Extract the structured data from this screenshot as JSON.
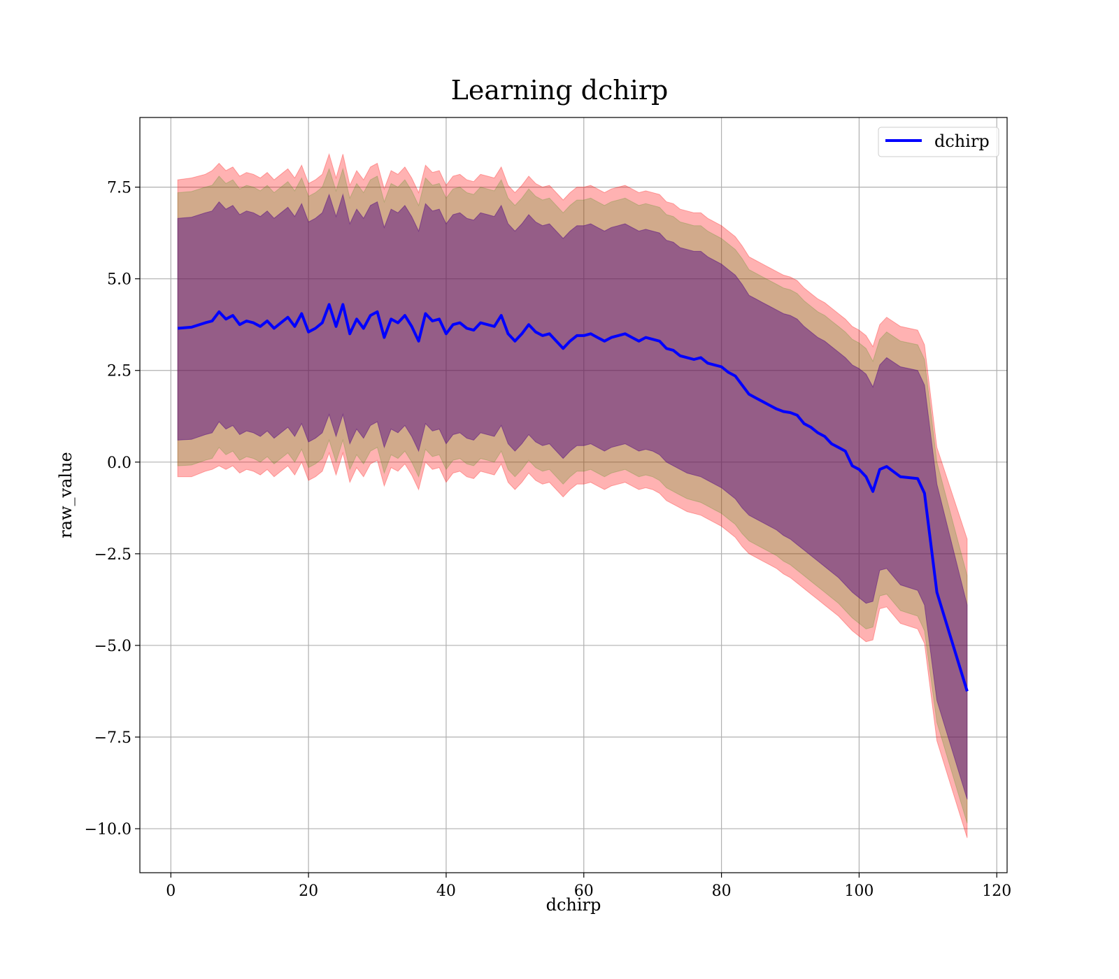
{
  "chart_data": {
    "type": "line",
    "title": "Learning dchirp",
    "xlabel": "dchirp",
    "ylabel": "raw_value",
    "xlim": [
      -4.5,
      121.5
    ],
    "ylim": [
      -11.2,
      9.4
    ],
    "xticks": [
      0,
      20,
      40,
      60,
      80,
      100,
      120
    ],
    "xtick_labels": [
      "0",
      "20",
      "40",
      "60",
      "80",
      "100",
      "120"
    ],
    "yticks": [
      7.5,
      5.0,
      2.5,
      0.0,
      -2.5,
      -5.0,
      -7.5,
      -10.0
    ],
    "ytick_labels": [
      "7.5",
      "5.0",
      "2.5",
      "0.0",
      "−2.5",
      "−5.0",
      "−7.5",
      "−10.0"
    ],
    "grid": true,
    "legend_position": "top-right",
    "series": [
      {
        "name": "dchirp",
        "color": "#0000ff",
        "x": [
          1,
          3,
          5,
          6,
          7,
          8,
          9,
          10,
          11,
          12,
          13,
          14,
          15,
          16,
          17,
          18,
          19,
          20,
          21,
          22,
          23,
          24,
          25,
          26,
          27,
          28,
          29,
          30,
          31,
          32,
          33,
          34,
          35,
          36,
          37,
          38,
          39,
          40,
          41,
          42,
          43,
          44,
          45,
          46,
          47,
          48,
          49,
          50,
          51,
          52,
          53,
          54,
          55,
          56,
          57,
          58,
          59,
          60,
          61,
          62,
          63,
          64,
          65,
          66,
          67,
          68,
          69,
          70,
          71,
          72,
          73,
          74,
          75,
          76,
          77,
          78,
          79,
          80,
          81,
          82,
          83,
          84,
          85,
          86,
          87,
          88,
          89,
          90,
          91,
          92,
          93,
          94,
          95,
          96,
          97,
          98,
          99,
          100,
          101,
          102,
          103,
          104,
          106,
          108.5,
          109.5,
          111.3,
          115.7
        ],
        "y": [
          3.65,
          3.68,
          3.8,
          3.85,
          4.1,
          3.9,
          4.0,
          3.75,
          3.85,
          3.8,
          3.7,
          3.85,
          3.65,
          3.8,
          3.95,
          3.7,
          4.05,
          3.55,
          3.65,
          3.8,
          4.3,
          3.7,
          4.3,
          3.5,
          3.9,
          3.65,
          4.0,
          4.1,
          3.4,
          3.9,
          3.8,
          4.0,
          3.7,
          3.3,
          4.05,
          3.85,
          3.9,
          3.5,
          3.75,
          3.8,
          3.65,
          3.6,
          3.8,
          3.75,
          3.7,
          4.0,
          3.5,
          3.3,
          3.5,
          3.75,
          3.55,
          3.45,
          3.5,
          3.3,
          3.1,
          3.3,
          3.45,
          3.45,
          3.5,
          3.4,
          3.3,
          3.4,
          3.45,
          3.5,
          3.4,
          3.3,
          3.4,
          3.35,
          3.3,
          3.1,
          3.05,
          2.9,
          2.85,
          2.8,
          2.85,
          2.7,
          2.65,
          2.6,
          2.45,
          2.35,
          2.1,
          1.85,
          1.75,
          1.65,
          1.55,
          1.45,
          1.38,
          1.35,
          1.28,
          1.05,
          0.95,
          0.8,
          0.7,
          0.5,
          0.4,
          0.3,
          -0.1,
          -0.2,
          -0.4,
          -0.8,
          -0.2,
          -0.12,
          -0.4,
          -0.45,
          -0.85,
          -3.55,
          -6.25
        ]
      }
    ],
    "bands": [
      {
        "color": "#ff0000",
        "opacity": 0.3,
        "x": [
          1,
          3,
          5,
          6,
          7,
          8,
          9,
          10,
          11,
          12,
          13,
          14,
          15,
          16,
          17,
          18,
          19,
          20,
          21,
          22,
          23,
          24,
          25,
          26,
          27,
          28,
          29,
          30,
          31,
          32,
          33,
          34,
          35,
          36,
          37,
          38,
          39,
          40,
          41,
          42,
          43,
          44,
          45,
          46,
          47,
          48,
          49,
          50,
          51,
          52,
          53,
          54,
          55,
          56,
          57,
          58,
          59,
          60,
          61,
          62,
          63,
          64,
          65,
          66,
          67,
          68,
          69,
          70,
          71,
          72,
          73,
          74,
          75,
          76,
          77,
          78,
          79,
          80,
          81,
          82,
          83,
          84,
          85,
          86,
          87,
          88,
          89,
          90,
          91,
          92,
          93,
          94,
          95,
          96,
          97,
          98,
          99,
          100,
          101,
          102,
          103,
          104,
          106,
          108.5,
          109.5,
          111.3,
          115.7
        ],
        "upper": [
          7.7,
          7.75,
          7.85,
          7.95,
          8.15,
          7.95,
          8.05,
          7.8,
          7.9,
          7.85,
          7.75,
          7.9,
          7.7,
          7.85,
          8.0,
          7.75,
          8.1,
          7.6,
          7.7,
          7.85,
          8.4,
          7.75,
          8.4,
          7.55,
          7.95,
          7.7,
          8.05,
          8.15,
          7.45,
          7.95,
          7.85,
          8.05,
          7.75,
          7.35,
          8.1,
          7.9,
          7.95,
          7.55,
          7.8,
          7.85,
          7.7,
          7.65,
          7.85,
          7.8,
          7.75,
          8.05,
          7.55,
          7.35,
          7.55,
          7.8,
          7.6,
          7.5,
          7.55,
          7.35,
          7.15,
          7.35,
          7.5,
          7.5,
          7.55,
          7.45,
          7.35,
          7.45,
          7.5,
          7.55,
          7.45,
          7.35,
          7.4,
          7.35,
          7.3,
          7.1,
          7.05,
          6.9,
          6.85,
          6.8,
          6.8,
          6.65,
          6.55,
          6.45,
          6.3,
          6.15,
          5.9,
          5.6,
          5.5,
          5.4,
          5.3,
          5.2,
          5.1,
          5.05,
          4.95,
          4.75,
          4.6,
          4.45,
          4.35,
          4.2,
          4.05,
          3.9,
          3.7,
          3.6,
          3.45,
          3.15,
          3.75,
          3.95,
          3.7,
          3.6,
          3.2,
          0.4,
          -2.1
        ],
        "lower": [
          -0.4,
          -0.4,
          -0.25,
          -0.2,
          -0.1,
          -0.2,
          -0.1,
          -0.3,
          -0.2,
          -0.25,
          -0.35,
          -0.2,
          -0.4,
          -0.25,
          -0.1,
          -0.35,
          0.0,
          -0.5,
          -0.4,
          -0.25,
          0.25,
          -0.35,
          0.25,
          -0.55,
          -0.15,
          -0.4,
          -0.05,
          0.05,
          -0.65,
          -0.15,
          -0.25,
          -0.05,
          -0.35,
          -0.75,
          0.0,
          -0.2,
          -0.15,
          -0.55,
          -0.3,
          -0.25,
          -0.4,
          -0.45,
          -0.25,
          -0.3,
          -0.35,
          -0.05,
          -0.55,
          -0.75,
          -0.55,
          -0.3,
          -0.5,
          -0.6,
          -0.55,
          -0.75,
          -0.95,
          -0.75,
          -0.6,
          -0.6,
          -0.55,
          -0.65,
          -0.75,
          -0.65,
          -0.6,
          -0.55,
          -0.65,
          -0.75,
          -0.7,
          -0.75,
          -0.85,
          -1.05,
          -1.15,
          -1.25,
          -1.35,
          -1.4,
          -1.45,
          -1.55,
          -1.65,
          -1.75,
          -1.9,
          -2.05,
          -2.3,
          -2.5,
          -2.6,
          -2.7,
          -2.8,
          -2.9,
          -3.05,
          -3.15,
          -3.3,
          -3.45,
          -3.6,
          -3.75,
          -3.9,
          -4.05,
          -4.2,
          -4.4,
          -4.6,
          -4.75,
          -4.9,
          -4.85,
          -4.0,
          -3.95,
          -4.4,
          -4.55,
          -4.95,
          -7.6,
          -10.25
        ]
      },
      {
        "color": "#2e8b00",
        "opacity": 0.22,
        "x": [
          1,
          3,
          5,
          6,
          7,
          8,
          9,
          10,
          11,
          12,
          13,
          14,
          15,
          16,
          17,
          18,
          19,
          20,
          21,
          22,
          23,
          24,
          25,
          26,
          27,
          28,
          29,
          30,
          31,
          32,
          33,
          34,
          35,
          36,
          37,
          38,
          39,
          40,
          41,
          42,
          43,
          44,
          45,
          46,
          47,
          48,
          49,
          50,
          51,
          52,
          53,
          54,
          55,
          56,
          57,
          58,
          59,
          60,
          61,
          62,
          63,
          64,
          65,
          66,
          67,
          68,
          69,
          70,
          71,
          72,
          73,
          74,
          75,
          76,
          77,
          78,
          79,
          80,
          81,
          82,
          83,
          84,
          85,
          86,
          87,
          88,
          89,
          90,
          91,
          92,
          93,
          94,
          95,
          96,
          97,
          98,
          99,
          100,
          101,
          102,
          103,
          104,
          106,
          108.5,
          109.5,
          111.3,
          115.7
        ],
        "upper": [
          7.35,
          7.38,
          7.5,
          7.55,
          7.8,
          7.6,
          7.7,
          7.45,
          7.55,
          7.5,
          7.4,
          7.55,
          7.35,
          7.5,
          7.65,
          7.4,
          7.75,
          7.25,
          7.35,
          7.5,
          8.0,
          7.4,
          8.0,
          7.2,
          7.6,
          7.35,
          7.7,
          7.8,
          7.1,
          7.6,
          7.5,
          7.7,
          7.4,
          7.0,
          7.75,
          7.55,
          7.6,
          7.2,
          7.45,
          7.5,
          7.35,
          7.3,
          7.5,
          7.45,
          7.4,
          7.7,
          7.2,
          7.0,
          7.2,
          7.45,
          7.25,
          7.15,
          7.2,
          7.0,
          6.8,
          7.0,
          7.15,
          7.15,
          7.2,
          7.1,
          7.0,
          7.1,
          7.15,
          7.2,
          7.1,
          7.0,
          7.05,
          7.0,
          6.95,
          6.75,
          6.7,
          6.55,
          6.5,
          6.45,
          6.45,
          6.3,
          6.2,
          6.1,
          5.95,
          5.8,
          5.55,
          5.25,
          5.15,
          5.05,
          4.95,
          4.85,
          4.75,
          4.7,
          4.6,
          4.4,
          4.25,
          4.1,
          4.0,
          3.85,
          3.7,
          3.55,
          3.35,
          3.25,
          3.1,
          2.75,
          3.35,
          3.55,
          3.3,
          3.2,
          2.8,
          0.0,
          -3.1
        ],
        "lower": [
          -0.1,
          -0.08,
          0.05,
          0.1,
          0.4,
          0.2,
          0.3,
          0.05,
          0.15,
          0.1,
          0.0,
          0.15,
          -0.05,
          0.1,
          0.25,
          0.0,
          0.35,
          -0.15,
          -0.05,
          0.1,
          0.6,
          0.0,
          0.6,
          -0.2,
          0.2,
          -0.05,
          0.3,
          0.4,
          -0.3,
          0.2,
          0.1,
          0.3,
          0.0,
          -0.4,
          0.35,
          0.15,
          0.2,
          -0.2,
          0.05,
          0.1,
          -0.05,
          -0.1,
          0.1,
          0.05,
          0.0,
          0.3,
          -0.2,
          -0.4,
          -0.2,
          0.05,
          -0.15,
          -0.25,
          -0.2,
          -0.4,
          -0.6,
          -0.4,
          -0.25,
          -0.25,
          -0.2,
          -0.3,
          -0.4,
          -0.3,
          -0.25,
          -0.2,
          -0.3,
          -0.4,
          -0.35,
          -0.4,
          -0.5,
          -0.7,
          -0.8,
          -0.9,
          -1.0,
          -1.05,
          -1.1,
          -1.2,
          -1.3,
          -1.4,
          -1.55,
          -1.7,
          -1.95,
          -2.15,
          -2.25,
          -2.35,
          -2.45,
          -2.55,
          -2.7,
          -2.8,
          -2.95,
          -3.1,
          -3.25,
          -3.4,
          -3.55,
          -3.7,
          -3.85,
          -4.05,
          -4.25,
          -4.4,
          -4.55,
          -4.5,
          -3.65,
          -3.6,
          -4.05,
          -4.2,
          -4.6,
          -7.1,
          -9.85
        ]
      },
      {
        "color": "#4b0082",
        "opacity": 0.45,
        "x": [
          1,
          3,
          5,
          6,
          7,
          8,
          9,
          10,
          11,
          12,
          13,
          14,
          15,
          16,
          17,
          18,
          19,
          20,
          21,
          22,
          23,
          24,
          25,
          26,
          27,
          28,
          29,
          30,
          31,
          32,
          33,
          34,
          35,
          36,
          37,
          38,
          39,
          40,
          41,
          42,
          43,
          44,
          45,
          46,
          47,
          48,
          49,
          50,
          51,
          52,
          53,
          54,
          55,
          56,
          57,
          58,
          59,
          60,
          61,
          62,
          63,
          64,
          65,
          66,
          67,
          68,
          69,
          70,
          71,
          72,
          73,
          74,
          75,
          76,
          77,
          78,
          79,
          80,
          81,
          82,
          83,
          84,
          85,
          86,
          87,
          88,
          89,
          90,
          91,
          92,
          93,
          94,
          95,
          96,
          97,
          98,
          99,
          100,
          101,
          102,
          103,
          104,
          106,
          108.5,
          109.5,
          111.3,
          115.7
        ],
        "upper": [
          6.65,
          6.68,
          6.8,
          6.85,
          7.1,
          6.9,
          7.0,
          6.75,
          6.85,
          6.8,
          6.7,
          6.85,
          6.65,
          6.8,
          6.95,
          6.7,
          7.05,
          6.55,
          6.65,
          6.8,
          7.3,
          6.7,
          7.3,
          6.5,
          6.9,
          6.65,
          7.0,
          7.1,
          6.4,
          6.9,
          6.8,
          7.0,
          6.7,
          6.3,
          7.05,
          6.85,
          6.9,
          6.5,
          6.75,
          6.8,
          6.65,
          6.6,
          6.8,
          6.75,
          6.7,
          7.0,
          6.5,
          6.3,
          6.5,
          6.75,
          6.55,
          6.45,
          6.5,
          6.3,
          6.1,
          6.3,
          6.45,
          6.45,
          6.5,
          6.4,
          6.3,
          6.4,
          6.45,
          6.5,
          6.4,
          6.3,
          6.35,
          6.3,
          6.25,
          6.05,
          6.0,
          5.85,
          5.8,
          5.75,
          5.75,
          5.6,
          5.5,
          5.4,
          5.25,
          5.1,
          4.85,
          4.55,
          4.45,
          4.35,
          4.25,
          4.15,
          4.05,
          4.0,
          3.9,
          3.7,
          3.55,
          3.4,
          3.3,
          3.15,
          3.0,
          2.85,
          2.65,
          2.55,
          2.4,
          2.05,
          2.65,
          2.85,
          2.6,
          2.5,
          2.1,
          -0.6,
          -3.9
        ],
        "lower": [
          0.6,
          0.62,
          0.75,
          0.8,
          1.1,
          0.9,
          1.0,
          0.75,
          0.85,
          0.8,
          0.7,
          0.85,
          0.65,
          0.8,
          0.95,
          0.7,
          1.05,
          0.55,
          0.65,
          0.8,
          1.3,
          0.7,
          1.3,
          0.5,
          0.9,
          0.65,
          1.0,
          1.1,
          0.4,
          0.9,
          0.8,
          1.0,
          0.7,
          0.3,
          1.05,
          0.85,
          0.9,
          0.5,
          0.75,
          0.8,
          0.65,
          0.6,
          0.8,
          0.75,
          0.7,
          1.0,
          0.5,
          0.3,
          0.5,
          0.75,
          0.55,
          0.45,
          0.5,
          0.3,
          0.1,
          0.3,
          0.45,
          0.45,
          0.5,
          0.4,
          0.3,
          0.4,
          0.45,
          0.5,
          0.4,
          0.3,
          0.35,
          0.3,
          0.2,
          0.0,
          -0.1,
          -0.2,
          -0.3,
          -0.35,
          -0.4,
          -0.5,
          -0.6,
          -0.7,
          -0.85,
          -1.0,
          -1.25,
          -1.45,
          -1.55,
          -1.65,
          -1.75,
          -1.85,
          -2.0,
          -2.1,
          -2.25,
          -2.4,
          -2.55,
          -2.7,
          -2.85,
          -3.0,
          -3.15,
          -3.35,
          -3.55,
          -3.7,
          -3.85,
          -3.8,
          -2.95,
          -2.9,
          -3.35,
          -3.5,
          -3.9,
          -6.5,
          -9.2
        ]
      }
    ]
  }
}
